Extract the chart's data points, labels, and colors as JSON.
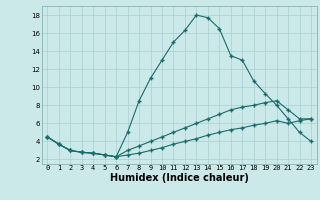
{
  "xlabel": "Humidex (Indice chaleur)",
  "background_color": "#cce9e9",
  "grid_color": "#aacfcf",
  "line_color": "#1a6b6b",
  "xlim": [
    -0.5,
    23.5
  ],
  "ylim": [
    1.5,
    19.0
  ],
  "yticks": [
    2,
    4,
    6,
    8,
    10,
    12,
    14,
    16,
    18
  ],
  "xticks": [
    0,
    1,
    2,
    3,
    4,
    5,
    6,
    7,
    8,
    9,
    10,
    11,
    12,
    13,
    14,
    15,
    16,
    17,
    18,
    19,
    20,
    21,
    22,
    23
  ],
  "series1_x": [
    0,
    1,
    2,
    3,
    4,
    5,
    6,
    7,
    8,
    9,
    10,
    11,
    12,
    13,
    14,
    15,
    16,
    17,
    18,
    19,
    20,
    21,
    22,
    23
  ],
  "series1_y": [
    4.5,
    3.7,
    3.0,
    2.8,
    2.7,
    2.5,
    2.3,
    5.0,
    8.5,
    11.0,
    13.0,
    15.0,
    16.3,
    18.0,
    17.7,
    16.5,
    13.5,
    13.0,
    10.7,
    9.3,
    8.0,
    6.5,
    5.0,
    4.0
  ],
  "series2_x": [
    0,
    1,
    2,
    3,
    4,
    5,
    6,
    7,
    8,
    9,
    10,
    11,
    12,
    13,
    14,
    15,
    16,
    17,
    18,
    19,
    20,
    21,
    22,
    23
  ],
  "series2_y": [
    4.5,
    3.7,
    3.0,
    2.8,
    2.7,
    2.5,
    2.3,
    3.0,
    3.5,
    4.0,
    4.5,
    5.0,
    5.5,
    6.0,
    6.5,
    7.0,
    7.5,
    7.8,
    8.0,
    8.3,
    8.5,
    7.5,
    6.5,
    6.5
  ],
  "series3_x": [
    0,
    1,
    2,
    3,
    4,
    5,
    6,
    7,
    8,
    9,
    10,
    11,
    12,
    13,
    14,
    15,
    16,
    17,
    18,
    19,
    20,
    21,
    22,
    23
  ],
  "series3_y": [
    4.5,
    3.7,
    3.0,
    2.8,
    2.7,
    2.5,
    2.3,
    2.5,
    2.7,
    3.0,
    3.3,
    3.7,
    4.0,
    4.3,
    4.7,
    5.0,
    5.3,
    5.5,
    5.8,
    6.0,
    6.3,
    6.0,
    6.3,
    6.5
  ],
  "tick_fontsize": 5.0,
  "xlabel_fontsize": 7.0
}
